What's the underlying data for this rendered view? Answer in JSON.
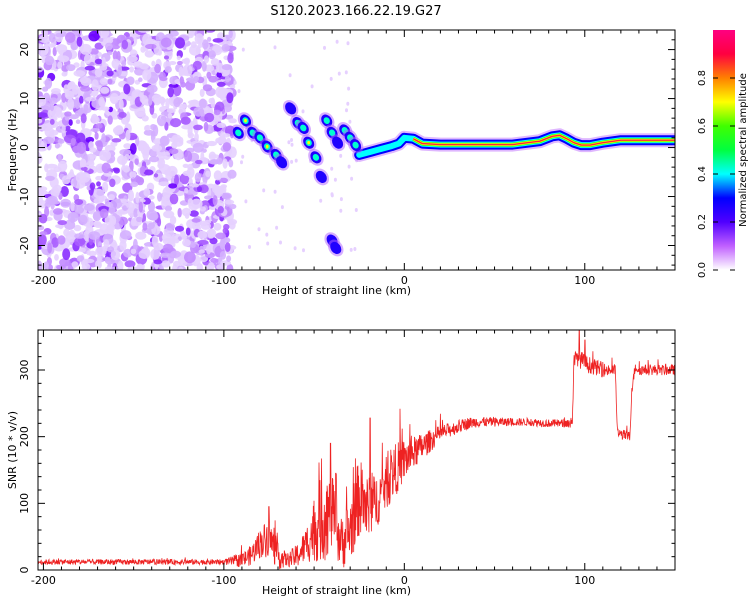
{
  "title": "S120.2023.166.22.19.G27",
  "chart_data": [
    {
      "type": "heatmap",
      "xlabel": "Height of straight line (km)",
      "ylabel": "Frequency (Hz)",
      "xlim": [
        -203,
        150
      ],
      "ylim": [
        -25,
        24
      ],
      "x_ticks": [
        -200,
        -100,
        0,
        100
      ],
      "y_ticks": [
        -20,
        -10,
        0,
        10,
        20
      ],
      "colorbar": {
        "label": "Normalized spectral amplitude",
        "range": [
          0,
          1
        ],
        "ticks": [
          "0.0",
          "0.2",
          "0.4",
          "0.6",
          "0.8"
        ],
        "colors": [
          "#ffffff",
          "#c060ff",
          "#5000ff",
          "#0000ff",
          "#00ffff",
          "#00ff40",
          "#40ff00",
          "#ffff00",
          "#ff8000",
          "#ff0040",
          "#ff0080"
        ]
      },
      "noise_region_x": [
        -203,
        -95
      ],
      "ridge": {
        "x": [
          -25,
          -18,
          -12,
          -7,
          -3,
          0,
          5,
          10,
          20,
          40,
          60,
          75,
          82,
          86,
          90,
          94,
          98,
          103,
          110,
          120,
          130,
          150
        ],
        "y": [
          -1.5,
          -0.8,
          -0.2,
          0.3,
          0.8,
          2.0,
          1.8,
          0.8,
          0.6,
          0.6,
          0.6,
          1.3,
          2.3,
          2.5,
          1.8,
          1.0,
          0.5,
          0.5,
          1.0,
          1.5,
          1.5,
          1.5
        ]
      },
      "blobs": [
        {
          "x": -92,
          "y": 3.0,
          "a": 0.35
        },
        {
          "x": -88,
          "y": 5.5,
          "a": 0.55
        },
        {
          "x": -84,
          "y": 3.0,
          "a": 0.35
        },
        {
          "x": -80,
          "y": 2.0,
          "a": 0.45
        },
        {
          "x": -76,
          "y": 0.2,
          "a": 0.5
        },
        {
          "x": -71,
          "y": -1.5,
          "a": 0.4
        },
        {
          "x": -68,
          "y": -3.0,
          "a": 0.25
        },
        {
          "x": -63,
          "y": 8.0,
          "a": 0.3
        },
        {
          "x": -59,
          "y": 5.0,
          "a": 0.45
        },
        {
          "x": -56,
          "y": 4.0,
          "a": 0.4
        },
        {
          "x": -53,
          "y": 1.0,
          "a": 0.5
        },
        {
          "x": -49,
          "y": -2.0,
          "a": 0.35
        },
        {
          "x": -46,
          "y": -6.0,
          "a": 0.3
        },
        {
          "x": -43,
          "y": 5.5,
          "a": 0.45
        },
        {
          "x": -40,
          "y": 3.0,
          "a": 0.35
        },
        {
          "x": -37,
          "y": 1.0,
          "a": 0.3
        },
        {
          "x": -33,
          "y": 3.5,
          "a": 0.4
        },
        {
          "x": -30,
          "y": 2.0,
          "a": 0.45
        },
        {
          "x": -27,
          "y": 0.5,
          "a": 0.35
        },
        {
          "x": -40,
          "y": -19.0,
          "a": 0.2
        },
        {
          "x": -38,
          "y": -20.5,
          "a": 0.2
        }
      ]
    },
    {
      "type": "line",
      "xlabel": "Height of straight line (km)",
      "ylabel": "SNR (10 * v/v)",
      "xlim": [
        -203,
        150
      ],
      "ylim": [
        0,
        360
      ],
      "x_ticks": [
        -200,
        -100,
        0,
        100
      ],
      "y_ticks": [
        0,
        100,
        200,
        300
      ],
      "color": "#ee2222",
      "trend": {
        "x": [
          -203,
          -100,
          -90,
          -85,
          -80,
          -75,
          -70,
          -65,
          -60,
          -55,
          -50,
          -45,
          -40,
          -35,
          -30,
          -25,
          -20,
          -15,
          -10,
          -5,
          0,
          5,
          10,
          15,
          20,
          25,
          30,
          35,
          40,
          50,
          60,
          70,
          80,
          90,
          93,
          94,
          96,
          100,
          105,
          110,
          117,
          118,
          125,
          126,
          128,
          130,
          135,
          140,
          150
        ],
        "y": [
          12,
          12,
          15,
          22,
          40,
          50,
          20,
          15,
          20,
          35,
          60,
          80,
          85,
          40,
          60,
          110,
          90,
          105,
          130,
          150,
          165,
          175,
          185,
          195,
          205,
          210,
          215,
          220,
          222,
          222,
          222,
          222,
          220,
          220,
          220,
          310,
          320,
          310,
          305,
          300,
          300,
          205,
          200,
          270,
          305,
          300,
          300,
          300,
          300
        ]
      },
      "noise": {
        "x": [
          -203,
          -100,
          -85,
          -75,
          -65,
          -55,
          -45,
          -35,
          -25,
          -15,
          -5,
          5,
          20,
          40,
          60,
          90,
          94,
          120,
          150
        ],
        "y": [
          4,
          4,
          15,
          30,
          10,
          25,
          70,
          40,
          60,
          40,
          40,
          25,
          12,
          8,
          6,
          6,
          15,
          8,
          8
        ]
      },
      "spikes": [
        {
          "x": -75,
          "y": 95
        },
        {
          "x": -41,
          "y": 190
        },
        {
          "x": -38,
          "y": 145
        },
        {
          "x": -22,
          "y": 120
        },
        {
          "x": -19,
          "y": 228
        },
        {
          "x": 97,
          "y": 360
        },
        {
          "x": 100,
          "y": 345
        }
      ]
    }
  ]
}
